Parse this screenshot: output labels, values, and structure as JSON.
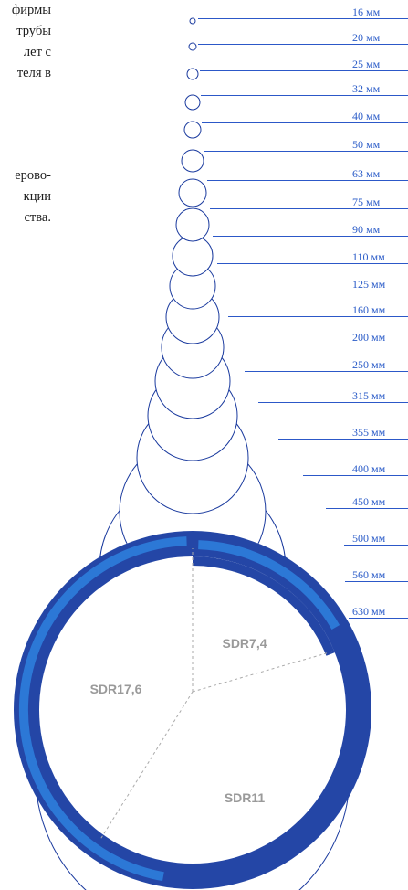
{
  "text": {
    "intro_lines": [
      "фирмы",
      "трубы",
      "лет с",
      "теля в"
    ],
    "mid_lines": [
      "ерово-",
      "кции",
      "ства."
    ]
  },
  "pipe_sizes": [
    {
      "label": "16 мм",
      "diameter_mm": 16
    },
    {
      "label": "20 мм",
      "diameter_mm": 20
    },
    {
      "label": "25 мм",
      "diameter_mm": 25
    },
    {
      "label": "32 мм",
      "diameter_mm": 32
    },
    {
      "label": "40 мм",
      "diameter_mm": 40
    },
    {
      "label": "50 мм",
      "diameter_mm": 50
    },
    {
      "label": "63  мм",
      "diameter_mm": 63
    },
    {
      "label": "75 мм",
      "diameter_mm": 75
    },
    {
      "label": "90  мм",
      "diameter_mm": 90
    },
    {
      "label": "110 мм",
      "diameter_mm": 110
    },
    {
      "label": "125 мм",
      "diameter_mm": 125
    },
    {
      "label": "160 мм",
      "diameter_mm": 160
    },
    {
      "label": "200 мм",
      "diameter_mm": 200
    },
    {
      "label": "250 мм",
      "diameter_mm": 250
    },
    {
      "label": "315 мм",
      "diameter_mm": 315
    },
    {
      "label": "355 мм",
      "diameter_mm": 355
    },
    {
      "label": "400 мм",
      "diameter_mm": 400
    },
    {
      "label": "450 мм",
      "diameter_mm": 450
    },
    {
      "label": "500 мм",
      "diameter_mm": 500
    },
    {
      "label": "560 мм",
      "diameter_mm": 560
    },
    {
      "label": "630 мм",
      "diameter_mm": 630
    }
  ],
  "sdr_sectors": [
    {
      "label": "SDR7,4"
    },
    {
      "label": "SDR17,6"
    },
    {
      "label": "SDR11"
    }
  ],
  "colors": {
    "outline": "#1a3a9e",
    "ring_dark": "#2446a6",
    "ring_light": "#2c78d6",
    "leader_line": "#2c58c8",
    "label_text": "#2b5cc8",
    "sdr_text": "#9a9a9a",
    "divider": "#aaaaaa"
  }
}
